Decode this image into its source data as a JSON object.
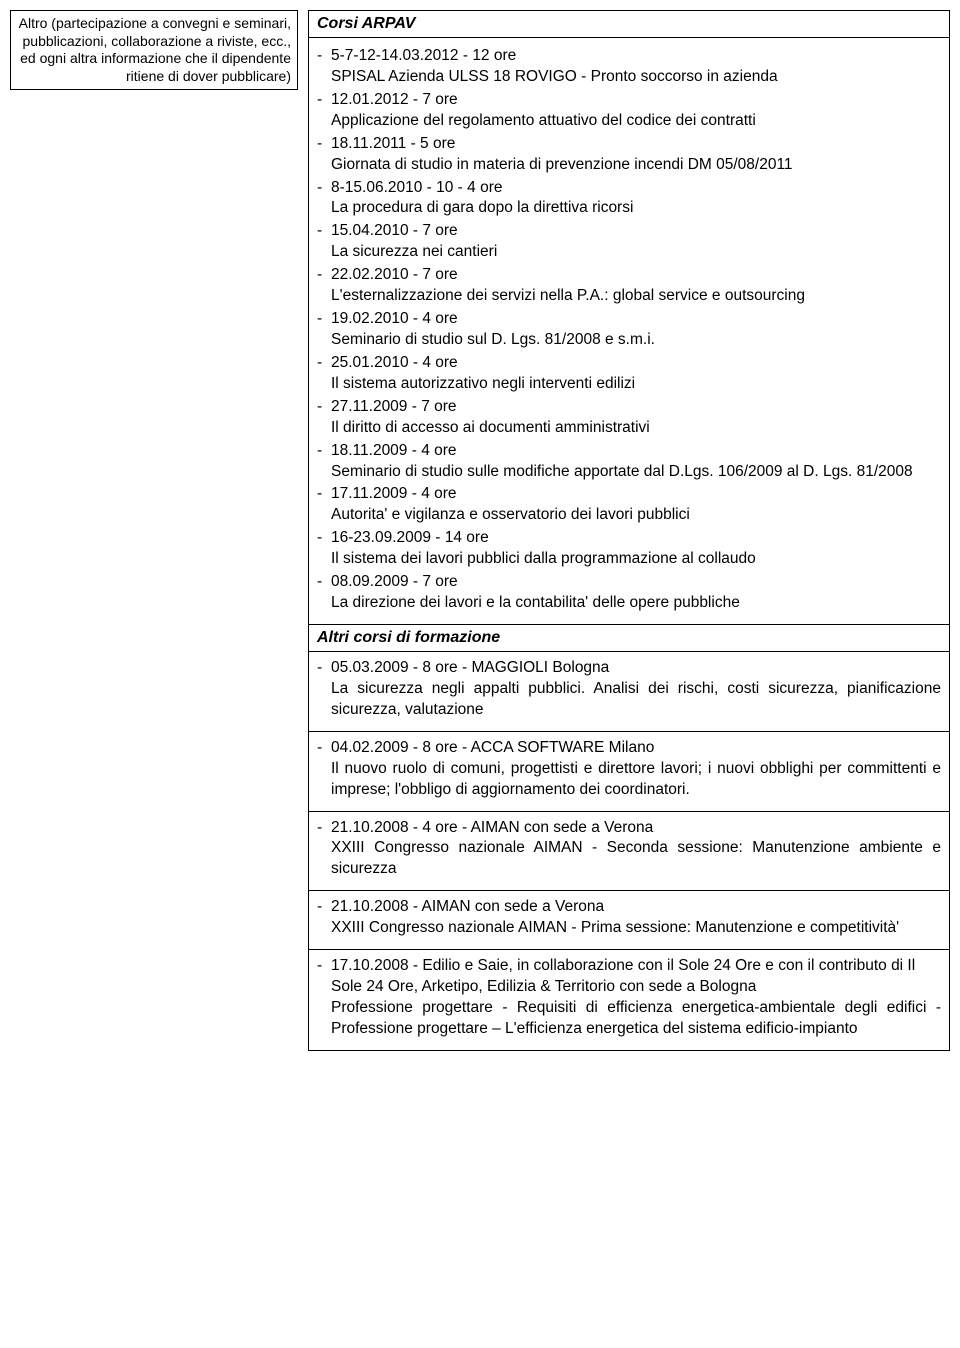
{
  "left": {
    "text": "Altro (partecipazione a convegni e seminari, pubblicazioni, collaborazione a riviste, ecc., ed ogni altra informazione che il dipendente ritiene di dover pubblicare)"
  },
  "section1": {
    "title": "Corsi ARPAV",
    "items": [
      {
        "date": "5-7-12-14.03.2012 - 12 ore",
        "desc": "SPISAL  Azienda ULSS 18 ROVIGO - Pronto soccorso in azienda"
      },
      {
        "date": "12.01.2012 - 7 ore",
        "desc": "Applicazione del regolamento attuativo del codice dei contratti"
      },
      {
        "date": "18.11.2011 - 5 ore",
        "desc": "Giornata di studio in materia di prevenzione incendi DM 05/08/2011"
      },
      {
        "date": "8-15.06.2010 - 10 - 4 ore",
        "desc": "La procedura di gara dopo la direttiva ricorsi"
      },
      {
        "date": "15.04.2010 - 7 ore",
        "desc": "La sicurezza nei cantieri"
      },
      {
        "date": "22.02.2010 - 7 ore",
        "desc": "L'esternalizzazione dei servizi nella P.A.: global service e outsourcing"
      },
      {
        "date": "19.02.2010 - 4 ore",
        "desc": "Seminario di studio sul D. Lgs. 81/2008 e s.m.i."
      },
      {
        "date": "25.01.2010 - 4 ore",
        "desc": "Il sistema autorizzativo negli interventi edilizi"
      },
      {
        "date": "27.11.2009  - 7 ore",
        "desc": "Il diritto di accesso ai documenti amministrativi"
      },
      {
        "date": "18.11.2009  - 4 ore",
        "desc": "Seminario di studio sulle modifiche apportate dal D.Lgs. 106/2009 al D. Lgs. 81/2008"
      },
      {
        "date": "17.11.2009  - 4 ore",
        "desc": "Autorita' e vigilanza e osservatorio dei lavori pubblici"
      },
      {
        "date": "16-23.09.2009  - 14 ore",
        "desc": "Il sistema dei lavori pubblici dalla programmazione al collaudo"
      },
      {
        "date": "08.09.2009  - 7 ore",
        "desc": "La direzione dei lavori e la contabilita' delle opere pubbliche"
      }
    ]
  },
  "section2": {
    "title": "Altri corsi di formazione",
    "items": [
      {
        "head": "05.03.2009 - 8 ore - MAGGIOLI Bologna",
        "body": "La sicurezza negli appalti pubblici. Analisi dei rischi, costi sicurezza, pianificazione sicurezza, valutazione"
      },
      {
        "head": "04.02.2009 - 8 ore - ACCA SOFTWARE Milano",
        "body": "Il nuovo ruolo di comuni, progettisti e direttore lavori; i nuovi obblighi per committenti e imprese; l'obbligo di aggiornamento dei coordinatori."
      },
      {
        "head": "21.10.2008 - 4 ore - AIMAN con sede a Verona",
        "body": "XXIII Congresso nazionale AIMAN - Seconda sessione: Manutenzione ambiente e sicurezza"
      },
      {
        "head": "21.10.2008 - AIMAN con sede a Verona",
        "body": "XXIII Congresso nazionale AIMAN - Prima sessione: Manutenzione e competitività'"
      },
      {
        "head": "17.10.2008 - Edilio e Saie, in collaborazione con il Sole 24 Ore e con il contributo di Il Sole 24 Ore, Arketipo, Edilizia & Territorio con sede a Bologna",
        "body": "Professione progettare - Requisiti di efficienza energetica-ambientale degli edifici - Professione progettare – L'efficienza energetica del sistema edificio-impianto"
      }
    ]
  }
}
